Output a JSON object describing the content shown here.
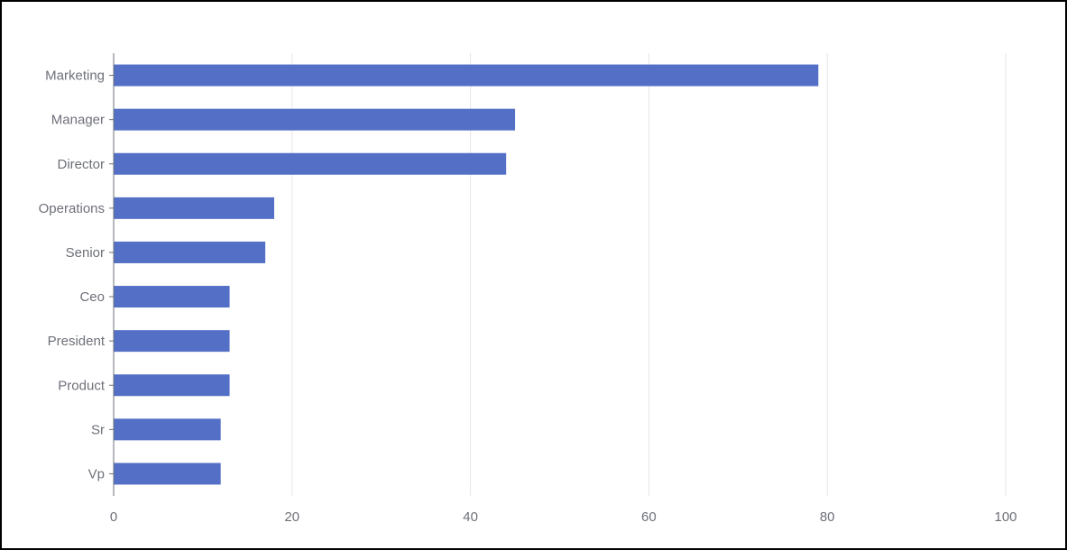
{
  "chart_data": {
    "type": "bar",
    "orientation": "horizontal",
    "categories": [
      "Marketing",
      "Manager",
      "Director",
      "Operations",
      "Senior",
      "Ceo",
      "President",
      "Product",
      "Sr",
      "Vp"
    ],
    "values": [
      79,
      45,
      44,
      18,
      17,
      13,
      13,
      13,
      12,
      12
    ],
    "xlim": [
      0,
      100
    ],
    "xticks": [
      "0",
      "20",
      "40",
      "60",
      "80",
      "100"
    ],
    "title": "",
    "xlabel": "",
    "ylabel": "",
    "grid": "vertical",
    "legend": "none"
  },
  "colors": {
    "bar": "#5470c6",
    "grid": "#e6e6e6",
    "axis": "#6e7079",
    "label": "#6e7079",
    "border": "#000000",
    "background": "#ffffff"
  }
}
